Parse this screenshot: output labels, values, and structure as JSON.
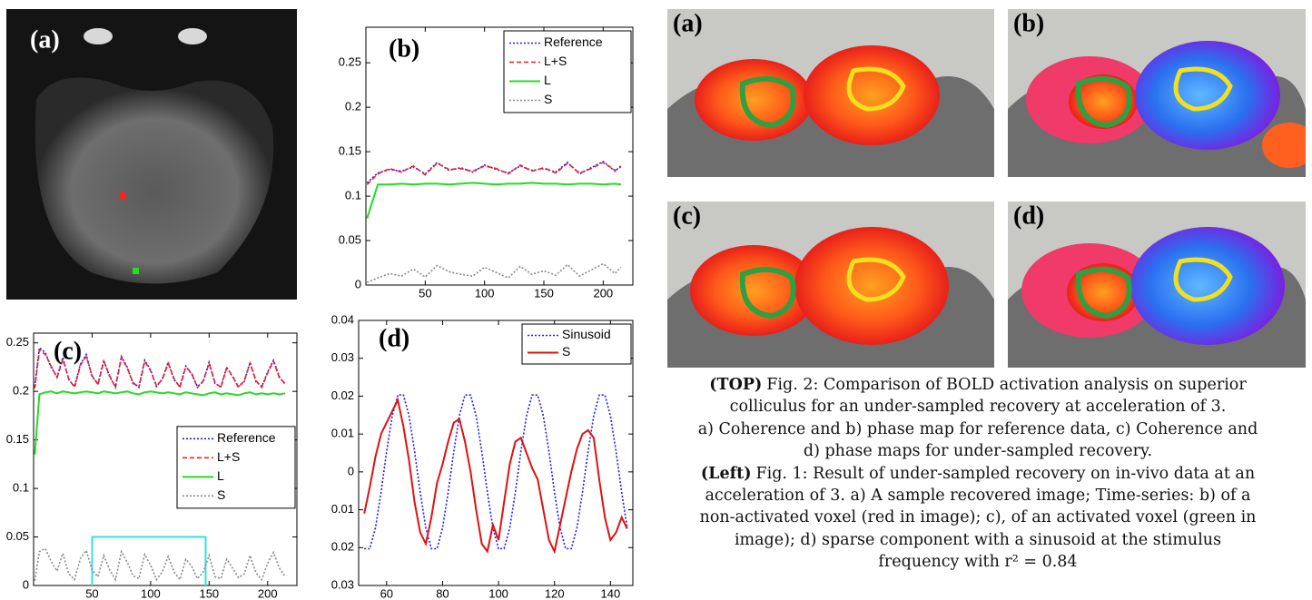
{
  "left_image": {
    "label": "(a)"
  },
  "images": [
    {
      "label": "(a)"
    },
    {
      "label": "(b)"
    },
    {
      "label": "(c)"
    },
    {
      "label": "(d)"
    }
  ],
  "caption": {
    "top_heading": "(TOP)",
    "top_lines": [
      "Fig. 2: Comparison of BOLD activation analysis on superior",
      "colliculus for an under-sampled recovery at acceleration of 3.",
      "a) Coherence and b) phase map for reference data, c) Coherence and",
      "d) phase maps for under-sampled recovery."
    ],
    "left_heading": "(Left)",
    "left_lines": [
      "Fig. 1: Result of under-sampled recovery on in-vivo data at an",
      "acceleration of 3.  a) A sample recovered image; Time-series: b) of a",
      "non-activated voxel (red in image); c), of an activated voxel (green in",
      "image); d) sparse component with a sinusoid at the stimulus",
      "frequency with r² = 0.84"
    ]
  },
  "chart_data": [
    {
      "type": "line",
      "panel_label": "(b)",
      "legend": "upper right",
      "x": [
        1,
        10,
        20,
        30,
        40,
        50,
        60,
        70,
        80,
        90,
        100,
        110,
        120,
        130,
        140,
        150,
        160,
        170,
        180,
        190,
        200,
        210,
        215
      ],
      "xlim": [
        0,
        225
      ],
      "ylim": [
        0,
        0.29
      ],
      "xticks": [
        50,
        100,
        150,
        200
      ],
      "yticks": [
        0,
        0.05,
        0.1,
        0.15,
        0.2,
        0.25
      ],
      "series": [
        {
          "name": "Reference",
          "color": "#1a1aff",
          "style": "dotted",
          "values": [
            0.115,
            0.126,
            0.13,
            0.128,
            0.133,
            0.125,
            0.138,
            0.129,
            0.132,
            0.127,
            0.135,
            0.13,
            0.126,
            0.134,
            0.129,
            0.131,
            0.127,
            0.138,
            0.125,
            0.132,
            0.139,
            0.128,
            0.134
          ]
        },
        {
          "name": "L+S",
          "color": "#ff1a1a",
          "style": "dashed",
          "values": [
            0.113,
            0.125,
            0.131,
            0.127,
            0.134,
            0.124,
            0.137,
            0.13,
            0.131,
            0.128,
            0.134,
            0.131,
            0.125,
            0.135,
            0.128,
            0.132,
            0.126,
            0.137,
            0.126,
            0.131,
            0.138,
            0.129,
            0.133
          ]
        },
        {
          "name": "L",
          "color": "#22dd22",
          "style": "solid",
          "values": [
            0.075,
            0.113,
            0.113,
            0.114,
            0.113,
            0.114,
            0.114,
            0.113,
            0.114,
            0.115,
            0.114,
            0.113,
            0.114,
            0.114,
            0.115,
            0.114,
            0.114,
            0.113,
            0.114,
            0.114,
            0.113,
            0.114,
            0.113
          ]
        },
        {
          "name": "S",
          "color": "#888888",
          "style": "dotted",
          "values": [
            0.003,
            0.008,
            0.013,
            0.01,
            0.018,
            0.009,
            0.022,
            0.015,
            0.012,
            0.01,
            0.02,
            0.014,
            0.008,
            0.021,
            0.012,
            0.016,
            0.011,
            0.023,
            0.01,
            0.017,
            0.024,
            0.013,
            0.02
          ]
        }
      ]
    },
    {
      "type": "line",
      "panel_label": "(c)",
      "legend": "center right",
      "x": [
        1,
        5,
        10,
        15,
        20,
        25,
        30,
        35,
        40,
        45,
        50,
        55,
        60,
        65,
        70,
        75,
        80,
        85,
        90,
        95,
        100,
        105,
        110,
        115,
        120,
        125,
        130,
        135,
        140,
        145,
        150,
        155,
        160,
        165,
        170,
        175,
        180,
        185,
        190,
        195,
        200,
        205,
        210,
        215
      ],
      "xlim": [
        0,
        225
      ],
      "ylim": [
        0,
        0.26
      ],
      "xticks": [
        50,
        100,
        150,
        200
      ],
      "yticks": [
        0,
        0.05,
        0.1,
        0.15,
        0.2,
        0.25
      ],
      "highlight": {
        "x": [
          50,
          147
        ],
        "y": 0.05,
        "color": "#33e0e0"
      },
      "series": [
        {
          "name": "Reference",
          "color": "#1a1aff",
          "style": "dotted",
          "values": [
            0.205,
            0.245,
            0.24,
            0.225,
            0.215,
            0.235,
            0.212,
            0.205,
            0.228,
            0.238,
            0.215,
            0.208,
            0.232,
            0.215,
            0.205,
            0.236,
            0.225,
            0.208,
            0.205,
            0.232,
            0.222,
            0.205,
            0.213,
            0.23,
            0.212,
            0.205,
            0.226,
            0.218,
            0.205,
            0.21,
            0.23,
            0.208,
            0.205,
            0.225,
            0.215,
            0.205,
            0.21,
            0.23,
            0.21,
            0.205,
            0.22,
            0.232,
            0.215,
            0.207
          ]
        },
        {
          "name": "L+S",
          "color": "#ff1a1a",
          "style": "dashed",
          "values": [
            0.203,
            0.243,
            0.238,
            0.226,
            0.214,
            0.233,
            0.213,
            0.204,
            0.227,
            0.236,
            0.216,
            0.207,
            0.231,
            0.216,
            0.204,
            0.235,
            0.224,
            0.209,
            0.204,
            0.231,
            0.221,
            0.206,
            0.212,
            0.229,
            0.213,
            0.204,
            0.225,
            0.219,
            0.204,
            0.211,
            0.229,
            0.209,
            0.204,
            0.224,
            0.216,
            0.204,
            0.211,
            0.229,
            0.211,
            0.204,
            0.219,
            0.231,
            0.214,
            0.208
          ]
        },
        {
          "name": "L",
          "color": "#22dd22",
          "style": "solid",
          "values": [
            0.135,
            0.197,
            0.199,
            0.2,
            0.198,
            0.2,
            0.199,
            0.198,
            0.199,
            0.2,
            0.199,
            0.198,
            0.2,
            0.199,
            0.198,
            0.199,
            0.2,
            0.198,
            0.197,
            0.199,
            0.2,
            0.199,
            0.198,
            0.199,
            0.198,
            0.197,
            0.199,
            0.198,
            0.197,
            0.196,
            0.198,
            0.199,
            0.197,
            0.198,
            0.197,
            0.196,
            0.198,
            0.199,
            0.197,
            0.198,
            0.197,
            0.198,
            0.197,
            0.198
          ]
        },
        {
          "name": "S",
          "color": "#888888",
          "style": "dotted",
          "values": [
            0.005,
            0.035,
            0.038,
            0.025,
            0.015,
            0.033,
            0.012,
            0.006,
            0.028,
            0.036,
            0.016,
            0.009,
            0.031,
            0.016,
            0.006,
            0.035,
            0.024,
            0.01,
            0.007,
            0.032,
            0.021,
            0.006,
            0.014,
            0.03,
            0.014,
            0.006,
            0.027,
            0.02,
            0.007,
            0.014,
            0.031,
            0.009,
            0.007,
            0.027,
            0.018,
            0.008,
            0.012,
            0.031,
            0.013,
            0.006,
            0.023,
            0.034,
            0.018,
            0.009
          ]
        }
      ]
    },
    {
      "type": "line",
      "panel_label": "(d)",
      "legend": "upper right",
      "x": [
        52,
        54,
        56,
        58,
        60,
        62,
        64,
        66,
        68,
        70,
        72,
        74,
        76,
        78,
        80,
        82,
        84,
        86,
        88,
        90,
        92,
        94,
        96,
        98,
        100,
        102,
        104,
        106,
        108,
        110,
        112,
        114,
        116,
        118,
        120,
        122,
        124,
        126,
        128,
        130,
        132,
        134,
        136,
        138,
        140,
        142,
        144,
        146
      ],
      "xlim": [
        50,
        148
      ],
      "ylim": [
        -0.03,
        0.04
      ],
      "xticks": [
        60,
        80,
        100,
        120,
        140
      ],
      "yticks": [
        {
          "value": -0.03,
          "label": "0.03"
        },
        {
          "value": -0.02,
          "label": "0.02"
        },
        {
          "value": -0.01,
          "label": "0.01"
        },
        0,
        0.01,
        0.02,
        0.03,
        0.04
      ],
      "series": [
        {
          "name": "Sinusoid",
          "color": "#1a1aff",
          "style": "dotted",
          "values": [
            -0.0203,
            -0.0203,
            -0.0148,
            -0.0054,
            0.0054,
            0.0148,
            0.0203,
            0.0203,
            0.0148,
            0.0054,
            -0.0054,
            -0.0148,
            -0.0203,
            -0.0203,
            -0.0148,
            -0.0054,
            0.0054,
            0.0148,
            0.0203,
            0.0203,
            0.0148,
            0.0054,
            -0.0054,
            -0.0148,
            -0.0203,
            -0.0203,
            -0.0148,
            -0.0054,
            0.0054,
            0.0148,
            0.0203,
            0.0203,
            0.0148,
            0.0054,
            -0.0054,
            -0.0148,
            -0.0203,
            -0.0203,
            -0.0148,
            -0.0054,
            0.0054,
            0.0148,
            0.0203,
            0.0203,
            0.0148,
            0.0054,
            -0.0054,
            -0.0148
          ]
        },
        {
          "name": "S",
          "color": "#e01010",
          "style": "solid",
          "values": [
            -0.011,
            -0.004,
            0.004,
            0.01,
            0.013,
            0.016,
            0.019,
            0.012,
            0.003,
            -0.008,
            -0.016,
            -0.019,
            -0.012,
            -0.003,
            0.002,
            0.008,
            0.013,
            0.014,
            0.008,
            0.0,
            -0.01,
            -0.019,
            -0.021,
            -0.014,
            -0.018,
            -0.008,
            0.002,
            0.008,
            0.009,
            0.005,
            0.001,
            -0.002,
            -0.01,
            -0.018,
            -0.021,
            -0.014,
            -0.007,
            0.0,
            0.006,
            0.01,
            0.011,
            0.009,
            -0.002,
            -0.012,
            -0.018,
            -0.016,
            -0.012,
            -0.015
          ]
        }
      ]
    }
  ]
}
